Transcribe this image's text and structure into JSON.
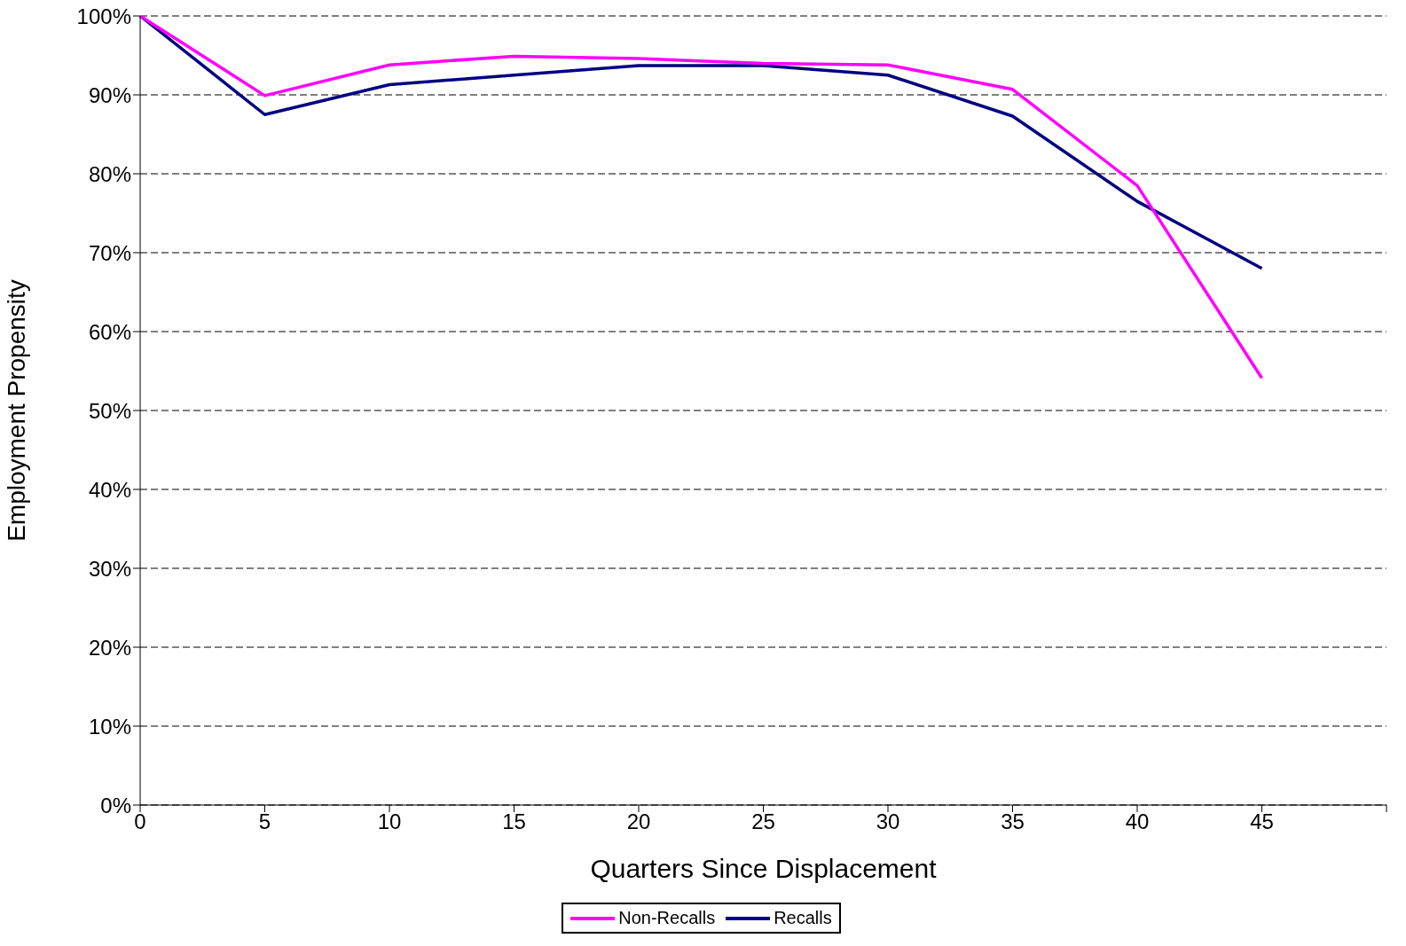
{
  "chart_data": {
    "type": "line",
    "xlabel": "Quarters Since Displacement",
    "ylabel": "Employment Propensity",
    "categories": [
      "0",
      "5",
      "10",
      "15",
      "20",
      "25",
      "30",
      "35",
      "40",
      "45",
      null
    ],
    "series": [
      {
        "name": "Recalls",
        "color": "#000080",
        "values": [
          100,
          87.5,
          91.3,
          92.5,
          93.7,
          93.7,
          92.5,
          87.3,
          76.5,
          68.0,
          null
        ]
      },
      {
        "name": "Non-Recalls",
        "color": "#ff00ff",
        "values": [
          100,
          89.9,
          93.8,
          94.9,
          94.6,
          94.0,
          93.8,
          90.7,
          78.5,
          54.1,
          null
        ]
      }
    ],
    "ylim": [
      0,
      100
    ],
    "yticks": [
      {
        "value": 0,
        "label": "0%"
      },
      {
        "value": 10,
        "label": "10%"
      },
      {
        "value": 20,
        "label": "20%"
      },
      {
        "value": 30,
        "label": "30%"
      },
      {
        "value": 40,
        "label": "40%"
      },
      {
        "value": 50,
        "label": "50%"
      },
      {
        "value": 60,
        "label": "60%"
      },
      {
        "value": 70,
        "label": "70%"
      },
      {
        "value": 80,
        "label": "80%"
      },
      {
        "value": 90,
        "label": "90%"
      },
      {
        "value": 100,
        "label": "100%"
      }
    ],
    "grid": "y",
    "legend": "bottom",
    "marker": "none",
    "line_style": "solid"
  }
}
